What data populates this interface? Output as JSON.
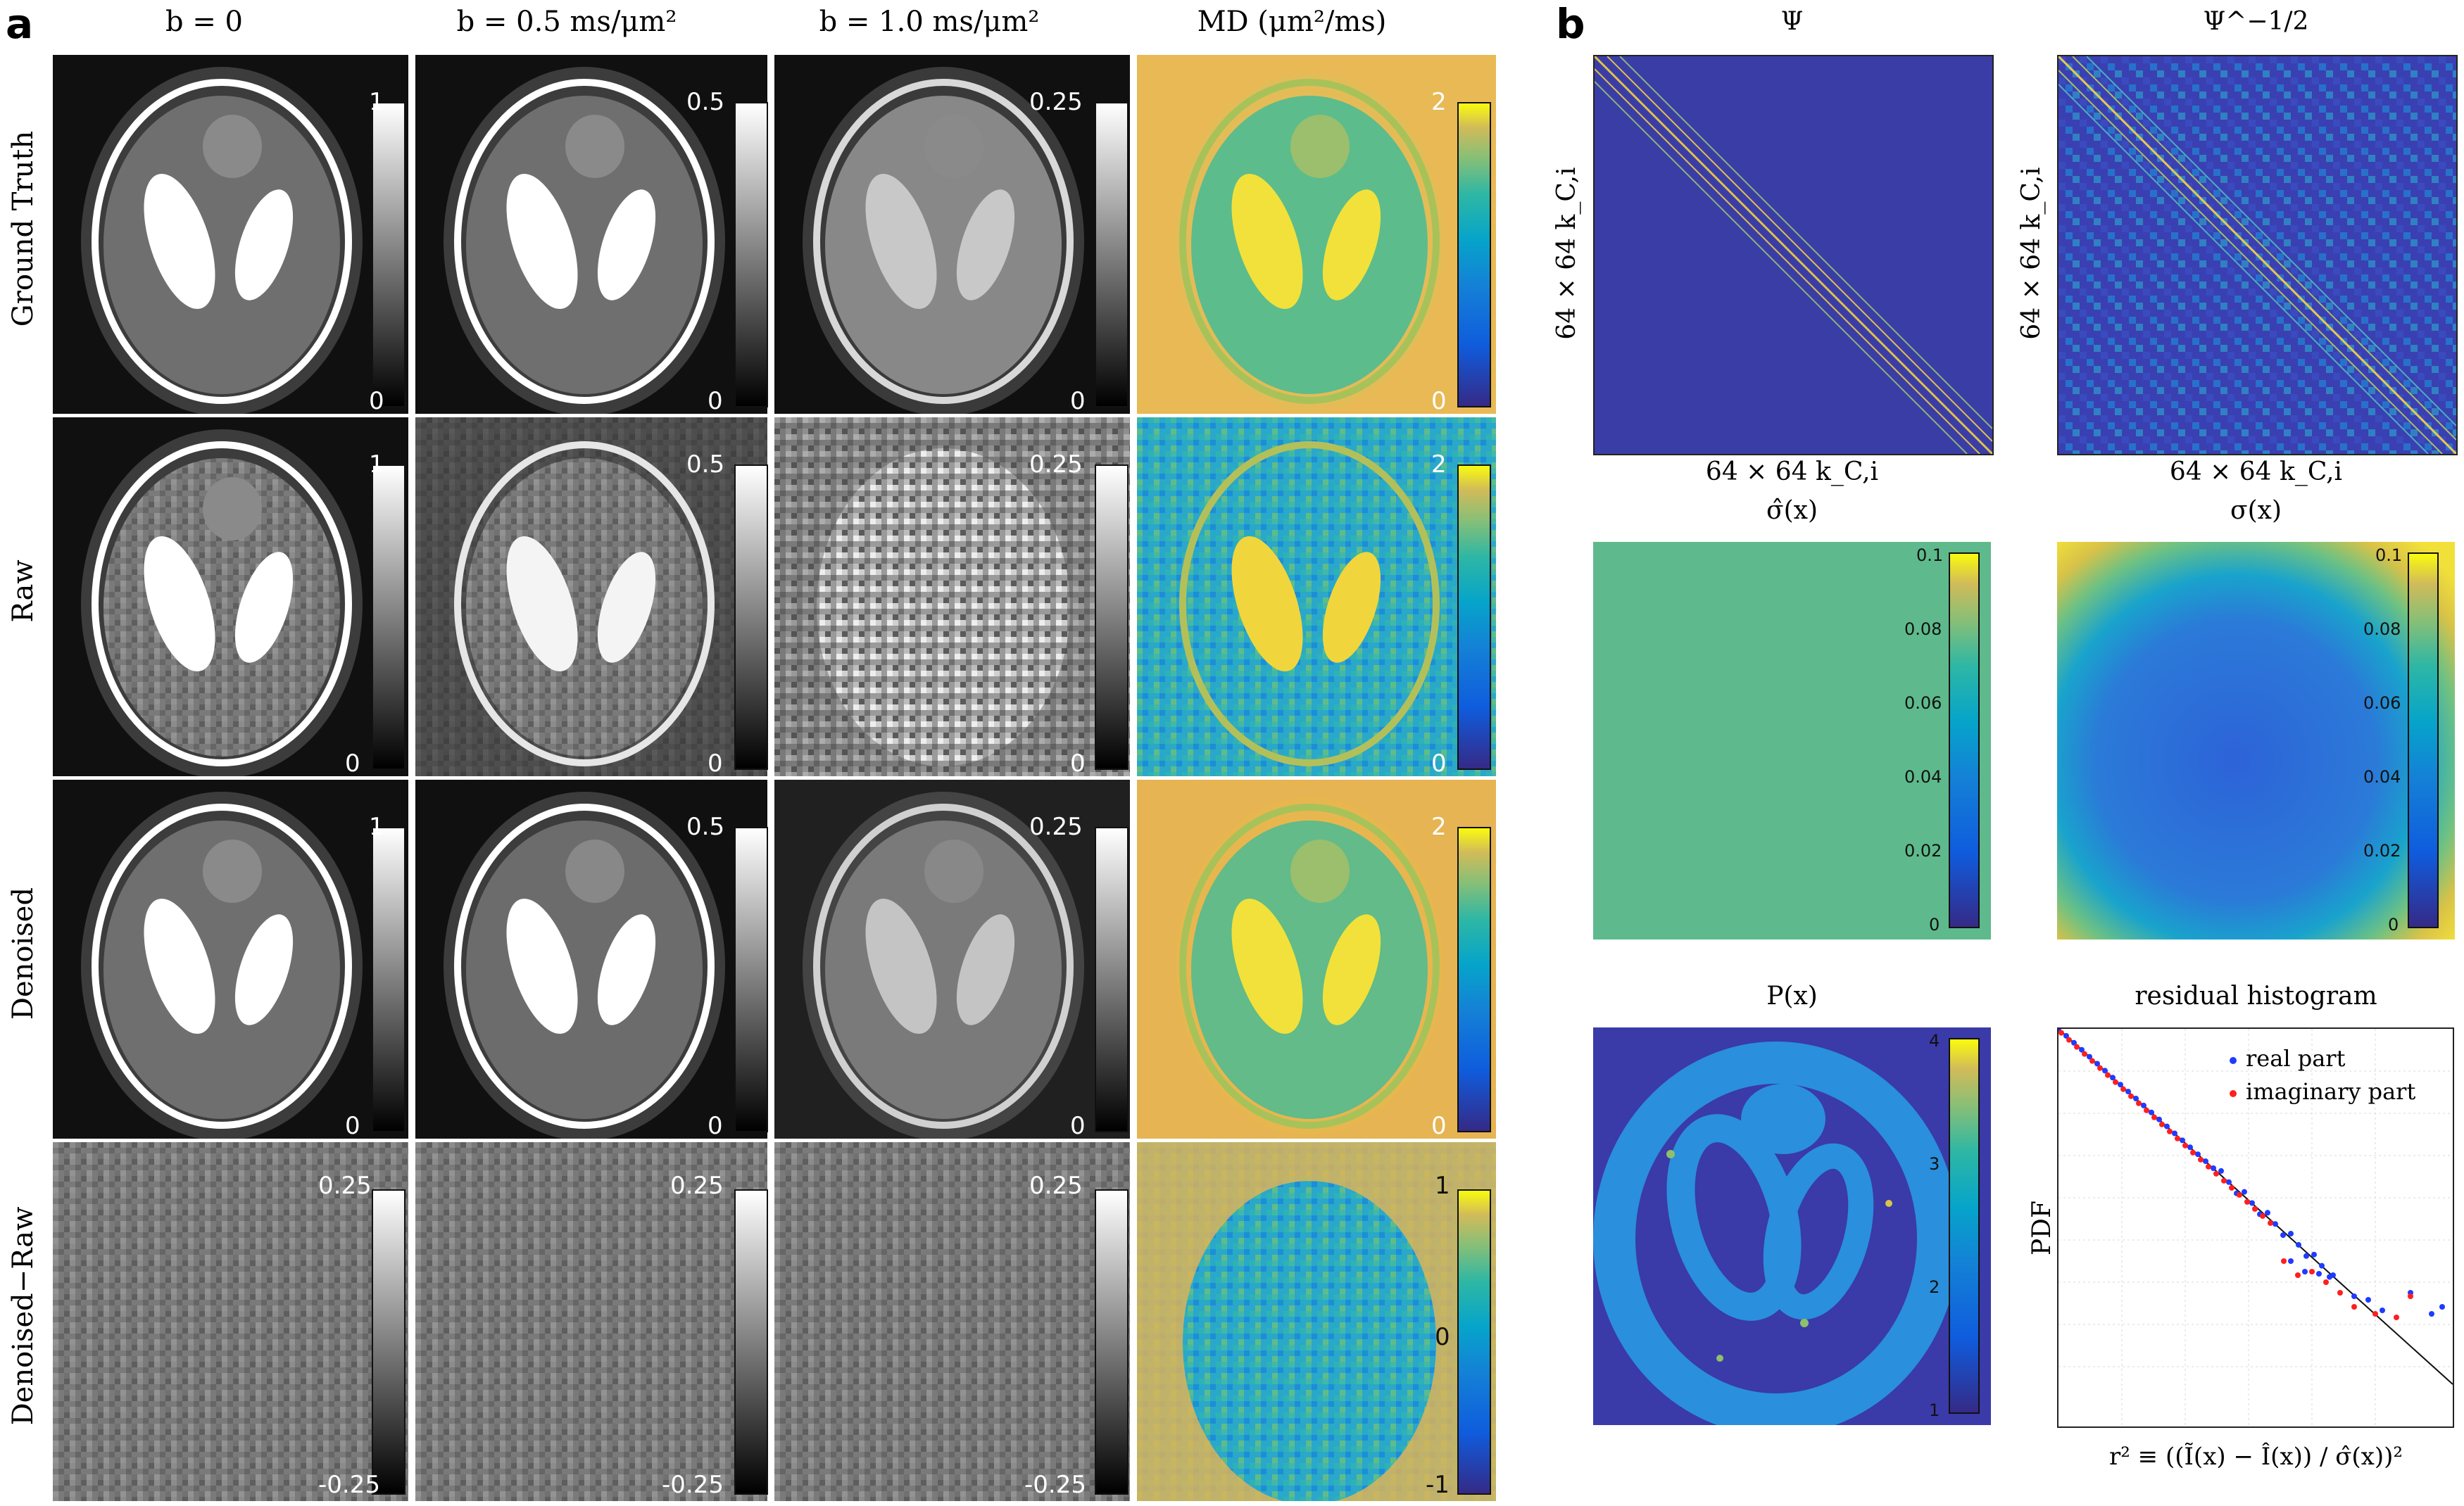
{
  "panel_a": {
    "letter": "a",
    "columns": [
      "b = 0",
      "b = 0.5 ms/μm²",
      "b = 1.0 ms/μm²",
      "MD (μm²/ms)"
    ],
    "rows": [
      "Ground Truth",
      "Raw",
      "Denoised",
      "Denoised−Raw"
    ],
    "colorbar_ticks": {
      "b0": {
        "top": "1",
        "bottom": "0"
      },
      "b05": {
        "top": "0.5",
        "bottom": "0"
      },
      "b1": {
        "top": "0.25",
        "bottom": "0"
      },
      "md": {
        "top": "2",
        "bottom": "0"
      },
      "diff": {
        "top": "0.25",
        "bottom": "-0.25"
      },
      "md_diff": {
        "top": "1",
        "mid": "0",
        "bottom": "-1"
      }
    }
  },
  "panel_b": {
    "letter": "b",
    "psi_title": "Ψ",
    "psi_inv_title": "Ψ^−1/2",
    "matrix_axis_label": "64 × 64 k_C,i",
    "sigma_hat_title": "σ̂(x)",
    "sigma_title": "σ(x)",
    "sigma_ticks": [
      "0.1",
      "0.08",
      "0.06",
      "0.04",
      "0.02",
      "0"
    ],
    "p_title": "P(x)",
    "p_ticks": [
      "4",
      "3",
      "2",
      "1"
    ],
    "hist_title": "residual histogram",
    "hist_ylabel": "PDF",
    "hist_xlabel": "r² ≡ ((Ĩ(x) − Î(x)) / σ̂(x))²",
    "legend": {
      "real": "real part",
      "imag": "imaginary part"
    },
    "colors": {
      "real": "#1f3bff",
      "imag": "#ff1f1f",
      "parula_dark": "#352a87",
      "parula_yellow": "#f9fb0e"
    }
  }
}
